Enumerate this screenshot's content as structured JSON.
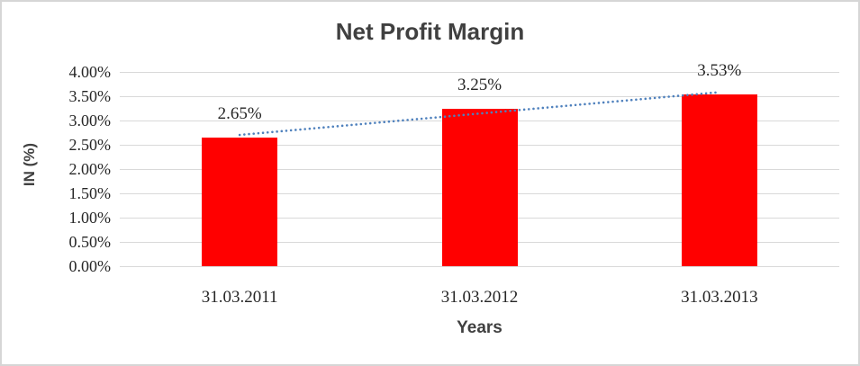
{
  "frame": {
    "background": "#ffffff",
    "border_color": "#d6d6d6"
  },
  "chart_data": {
    "type": "bar",
    "title": "Net Profit Margin",
    "xlabel": "Years",
    "ylabel": "IN (%)",
    "categories": [
      "31.03.2011",
      "31.03.2012",
      "31.03.2013"
    ],
    "values": [
      2.65,
      3.25,
      3.53
    ],
    "data_labels": [
      "2.65%",
      "3.25%",
      "3.53%"
    ],
    "ylim": [
      0,
      4
    ],
    "ytick_step": 0.5,
    "ytick_labels": [
      "0.00%",
      "0.50%",
      "1.00%",
      "1.50%",
      "2.00%",
      "2.50%",
      "3.00%",
      "3.50%",
      "4.00%"
    ],
    "grid": true,
    "legend_position": "none",
    "bar_color": "#ff0000",
    "trendline": {
      "type": "linear",
      "style": "dotted",
      "color": "#4f81bd"
    },
    "colors": {
      "title": "#404040",
      "axis_title": "#404040",
      "tick_label": "#262626",
      "gridline": "#d9d9d9"
    }
  }
}
